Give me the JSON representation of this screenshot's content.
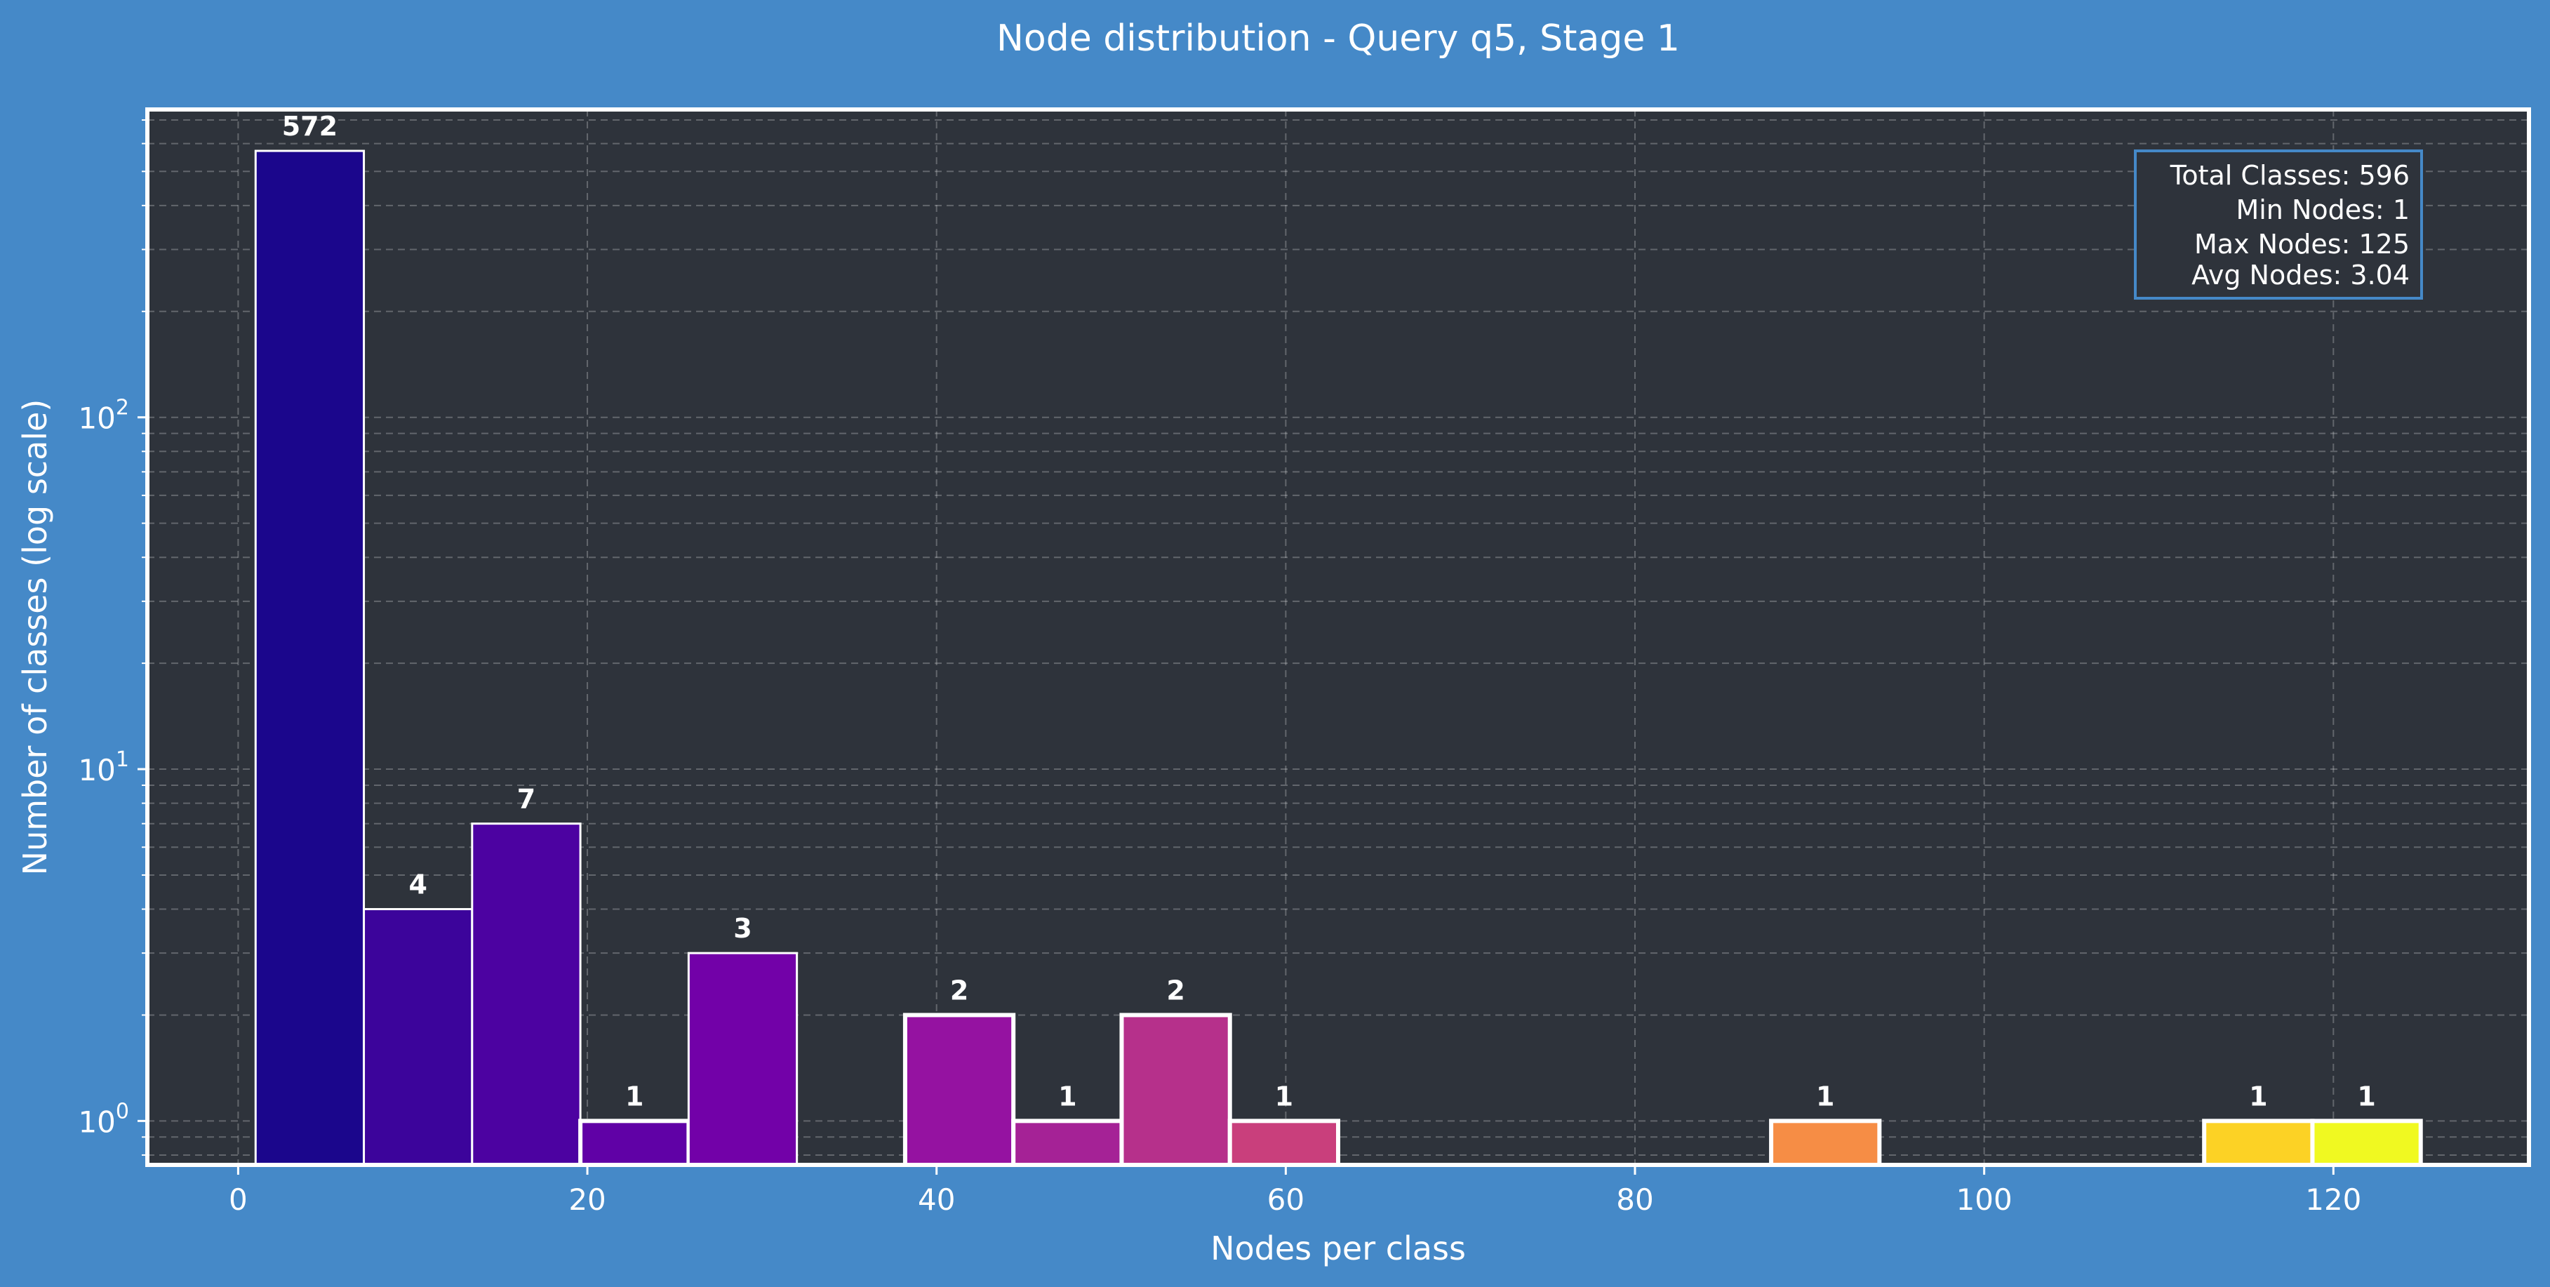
{
  "chart_data": {
    "type": "bar",
    "title": "Node distribution - Query q5, Stage 1",
    "xlabel": "Nodes per class",
    "ylabel": "Number of classes (log scale)",
    "y_scale": "log",
    "xlim": [
      -5.2,
      131.2
    ],
    "ylim": [
      0.75,
      750
    ],
    "x_ticks": [
      0,
      20,
      40,
      60,
      80,
      100,
      120
    ],
    "y_ticks": [
      {
        "value": 1,
        "base": "10",
        "exp": "0"
      },
      {
        "value": 10,
        "base": "10",
        "exp": "1"
      },
      {
        "value": 100,
        "base": "10",
        "exp": "2"
      }
    ],
    "grid": true,
    "bin_width": 6.2,
    "bins": [
      {
        "x0": 1.0,
        "x1": 7.2,
        "value": 572,
        "label": "572",
        "color": "#1b068c"
      },
      {
        "x0": 7.2,
        "x1": 13.4,
        "value": 4,
        "label": "4",
        "color": "#3c049b"
      },
      {
        "x0": 13.4,
        "x1": 19.6,
        "value": 7,
        "label": "7",
        "color": "#4c02a1"
      },
      {
        "x0": 19.6,
        "x1": 25.8,
        "value": 1,
        "label": "1",
        "color": "#6001a6"
      },
      {
        "x0": 25.8,
        "x1": 32.0,
        "value": 3,
        "label": "3",
        "color": "#7201a8"
      },
      {
        "x0": 38.2,
        "x1": 44.4,
        "value": 2,
        "label": "2",
        "color": "#9512a1"
      },
      {
        "x0": 44.4,
        "x1": 50.6,
        "value": 1,
        "label": "1",
        "color": "#a52296"
      },
      {
        "x0": 50.6,
        "x1": 56.8,
        "value": 2,
        "label": "2",
        "color": "#b6308b"
      },
      {
        "x0": 56.8,
        "x1": 63.0,
        "value": 1,
        "label": "1",
        "color": "#c93f7c"
      },
      {
        "x0": 87.8,
        "x1": 94.0,
        "value": 1,
        "label": "1",
        "color": "#f68d45"
      },
      {
        "x0": 112.6,
        "x1": 118.8,
        "value": 1,
        "label": "1",
        "color": "#fcd225"
      },
      {
        "x0": 118.8,
        "x1": 125.0,
        "value": 1,
        "label": "1",
        "color": "#f0f921"
      }
    ],
    "stats": [
      "Total Classes: 596",
      "Min Nodes: 1",
      "Max Nodes: 125",
      "Avg Nodes: 3.04"
    ],
    "colors": {
      "figure_bg": "#4589c8",
      "plot_bg": "#2e333b",
      "text": "#ffffff",
      "stats_border": "#4589c8"
    }
  }
}
